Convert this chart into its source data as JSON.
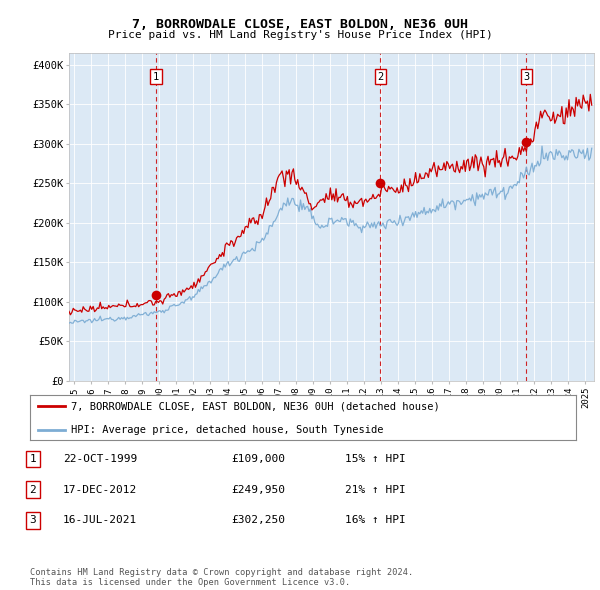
{
  "title": "7, BORROWDALE CLOSE, EAST BOLDON, NE36 0UH",
  "subtitle": "Price paid vs. HM Land Registry's House Price Index (HPI)",
  "ylabel_ticks": [
    "£0",
    "£50K",
    "£100K",
    "£150K",
    "£200K",
    "£250K",
    "£300K",
    "£350K",
    "£400K"
  ],
  "ytick_values": [
    0,
    50000,
    100000,
    150000,
    200000,
    250000,
    300000,
    350000,
    400000
  ],
  "ylim": [
    0,
    415000
  ],
  "xlim_start": 1994.7,
  "xlim_end": 2025.5,
  "sale_dates": [
    1999.81,
    2012.96,
    2021.54
  ],
  "sale_prices": [
    109000,
    249950,
    302250
  ],
  "sale_labels": [
    "1",
    "2",
    "3"
  ],
  "legend_house_label": "7, BORROWDALE CLOSE, EAST BOLDON, NE36 0UH (detached house)",
  "legend_hpi_label": "HPI: Average price, detached house, South Tyneside",
  "table_rows": [
    [
      "1",
      "22-OCT-1999",
      "£109,000",
      "15% ↑ HPI"
    ],
    [
      "2",
      "17-DEC-2012",
      "£249,950",
      "21% ↑ HPI"
    ],
    [
      "3",
      "16-JUL-2021",
      "£302,250",
      "16% ↑ HPI"
    ]
  ],
  "footnote": "Contains HM Land Registry data © Crown copyright and database right 2024.\nThis data is licensed under the Open Government Licence v3.0.",
  "house_color": "#cc0000",
  "hpi_color": "#7dadd4",
  "vline_color": "#cc0000",
  "dot_color": "#cc0000",
  "plot_bg_color": "#dce9f5",
  "grid_color": "#ffffff"
}
